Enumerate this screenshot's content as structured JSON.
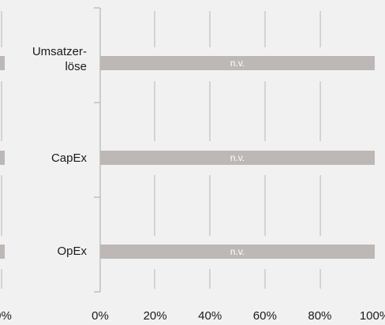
{
  "chart_data": {
    "type": "bar",
    "orientation": "horizontal",
    "categories": [
      "Umsatzer-\nlöse",
      "CapEx",
      "OpEx"
    ],
    "values": [
      100,
      100,
      100
    ],
    "data_labels": [
      "n.v.",
      "n.v.",
      "n.v."
    ],
    "xlim": [
      0,
      100
    ],
    "x_ticks": [
      "0%",
      "20%",
      "40%",
      "60%",
      "80%",
      "100%"
    ],
    "left_partial_tick_label": "0%",
    "grid": true,
    "colors": {
      "bar": "#bdb8b5",
      "grid": "#c9c9c9",
      "axis": "#bfbfbf",
      "background": "#f1f1f1"
    }
  }
}
